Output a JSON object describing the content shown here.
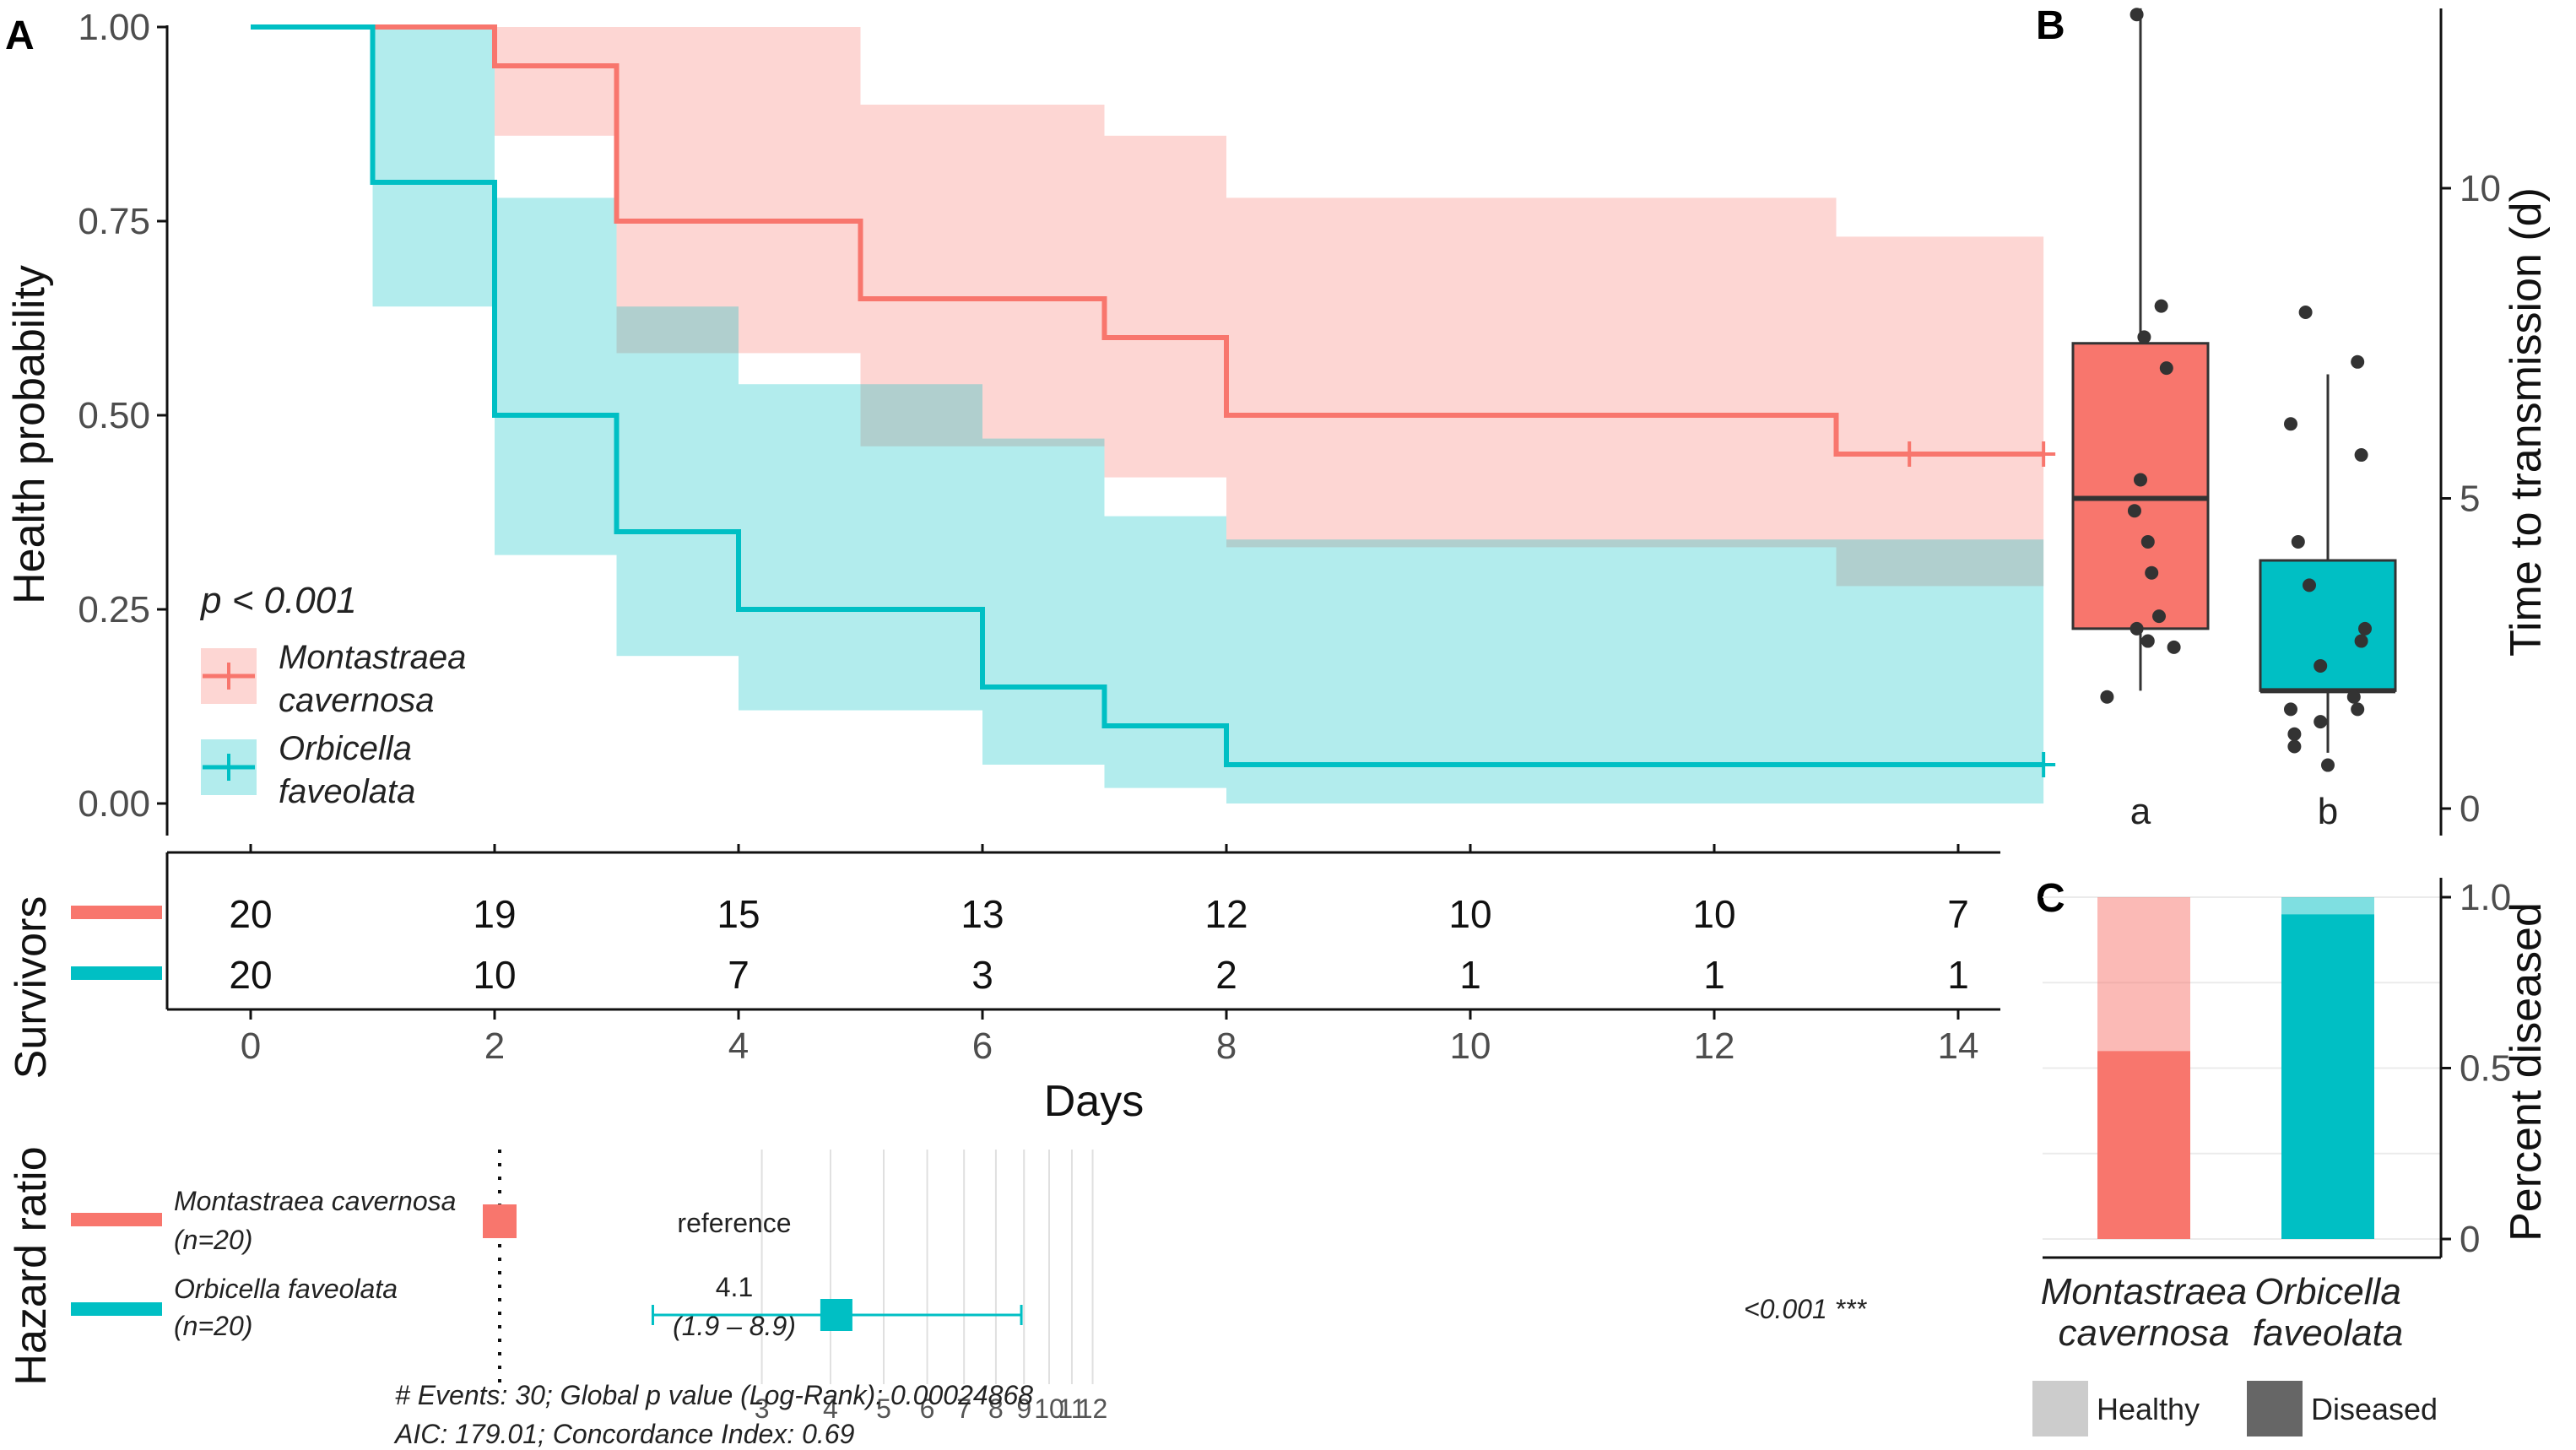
{
  "colors": {
    "mcav": "#F8766D",
    "ofav": "#00BFC4",
    "healthy": "#CCCCCC",
    "diseased": "#666666"
  },
  "chart_data": [
    {
      "panel": "A",
      "type": "line",
      "subtype": "kaplan-meier",
      "ylabel": "Health probability",
      "xlim": [
        0,
        14.7
      ],
      "ylim": [
        0,
        1
      ],
      "yticks": [
        "0.00",
        "0.25",
        "0.50",
        "0.75",
        "1.00"
      ],
      "pvalue_label": "p < 0.001",
      "legend": {
        "placement": "bottom-left",
        "entries": [
          {
            "line1": "Montastraea",
            "line2": "cavernosa"
          },
          {
            "line1": "Orbicella",
            "line2": "faveolata"
          }
        ]
      },
      "series": [
        {
          "name": "Montastraea cavernosa",
          "steps": [
            [
              0,
              1
            ],
            [
              1,
              1
            ],
            [
              2,
              0.95
            ],
            [
              3,
              0.75
            ],
            [
              5,
              0.65
            ],
            [
              7,
              0.6
            ],
            [
              8,
              0.5
            ],
            [
              13,
              0.45
            ],
            [
              14.7,
              0.45
            ]
          ],
          "ci": [
            [
              0,
              1,
              1
            ],
            [
              1,
              1,
              1
            ],
            [
              2,
              0.86,
              1
            ],
            [
              3,
              0.58,
              1
            ],
            [
              5,
              0.46,
              0.9
            ],
            [
              6,
              0.46,
              0.9
            ],
            [
              7,
              0.42,
              0.86
            ],
            [
              8,
              0.33,
              0.78
            ],
            [
              13,
              0.28,
              0.73
            ],
            [
              14.7,
              0.28,
              0.73
            ]
          ],
          "censor": [
            13.6,
            14.7
          ]
        },
        {
          "name": "Orbicella faveolata",
          "steps": [
            [
              0,
              1
            ],
            [
              1,
              0.8
            ],
            [
              2,
              0.5
            ],
            [
              3,
              0.35
            ],
            [
              4,
              0.25
            ],
            [
              6,
              0.15
            ],
            [
              7,
              0.1
            ],
            [
              8,
              0.05
            ],
            [
              14.7,
              0.05
            ]
          ],
          "ci": [
            [
              0,
              1,
              1
            ],
            [
              1,
              0.64,
              1
            ],
            [
              2,
              0.32,
              0.78
            ],
            [
              3,
              0.19,
              0.64
            ],
            [
              4,
              0.12,
              0.54
            ],
            [
              6,
              0.05,
              0.47
            ],
            [
              7,
              0.02,
              0.37
            ],
            [
              8,
              0,
              0.34
            ],
            [
              14.7,
              0,
              0.34
            ]
          ],
          "censor": [
            14.7
          ]
        }
      ]
    },
    {
      "panel": "A-table",
      "type": "table",
      "ylabel": "Survivors",
      "xlabel": "Days",
      "x": [
        0,
        2,
        4,
        6,
        8,
        10,
        12,
        14
      ],
      "rows": [
        {
          "name": "Montastraea cavernosa",
          "values": [
            20,
            19,
            15,
            13,
            12,
            10,
            10,
            7
          ]
        },
        {
          "name": "Orbicella faveolata",
          "values": [
            20,
            10,
            7,
            3,
            2,
            1,
            1,
            1
          ]
        }
      ]
    },
    {
      "panel": "A-hazard",
      "type": "scatter",
      "subtype": "forest",
      "ylabel": "Hazard ratio",
      "xscale": "log",
      "xticks": [
        3,
        4,
        5,
        6,
        7,
        8,
        9,
        10,
        11,
        12
      ],
      "rows": [
        {
          "name": "Montastraea cavernosa",
          "n": "(n=20)",
          "label": "reference",
          "hr": 1,
          "ci_text": "",
          "p_text": ""
        },
        {
          "name": "Orbicella faveolata",
          "n": "(n=20)",
          "label": "4.1",
          "hr": 4.1,
          "ci": [
            1.9,
            8.9
          ],
          "ci_text": "(1.9 – 8.9)",
          "p_text": "<0.001 ***"
        }
      ],
      "footer_line1": "# Events: 30; Global p value (Log-Rank): 0.00024868",
      "footer_line2": "AIC: 179.01; Concordance Index: 0.69"
    },
    {
      "panel": "B",
      "type": "box",
      "ylabel": "Time to transmission (d)",
      "ylim": [
        0,
        13
      ],
      "yticks": [
        0,
        5,
        10
      ],
      "groups": [
        {
          "name": "Montastraea cavernosa",
          "letter": "a",
          "q1": 2.9,
          "median": 5,
          "q3": 7.5,
          "whisker_low": 1.9,
          "whisker_high": 12.9,
          "points": [
            [
              -0.05,
              12.8
            ],
            [
              0.28,
              8.1
            ],
            [
              0.05,
              7.6
            ],
            [
              0.35,
              7.1
            ],
            [
              0.0,
              5.3
            ],
            [
              -0.08,
              4.8
            ],
            [
              0.1,
              4.3
            ],
            [
              0.15,
              3.8
            ],
            [
              0.25,
              3.1
            ],
            [
              -0.05,
              2.9
            ],
            [
              0.1,
              2.7
            ],
            [
              0.45,
              2.6
            ],
            [
              -0.45,
              1.8
            ]
          ]
        },
        {
          "name": "Orbicella faveolata",
          "letter": "b",
          "q1": 1.9,
          "median": 1.9,
          "q3": 4,
          "whisker_low": 0.9,
          "whisker_high": 7,
          "points": [
            [
              -0.3,
              8
            ],
            [
              0.4,
              7.2
            ],
            [
              -0.5,
              6.2
            ],
            [
              0.45,
              5.7
            ],
            [
              -0.4,
              4.3
            ],
            [
              -0.25,
              3.6
            ],
            [
              0.5,
              2.9
            ],
            [
              0.45,
              2.7
            ],
            [
              -0.1,
              2.3
            ],
            [
              0.35,
              1.8
            ],
            [
              0.4,
              1.6
            ],
            [
              -0.5,
              1.6
            ],
            [
              -0.1,
              1.4
            ],
            [
              -0.45,
              1.2
            ],
            [
              -0.45,
              1.0
            ],
            [
              0.0,
              0.7
            ]
          ]
        }
      ]
    },
    {
      "panel": "C",
      "type": "bar",
      "stacked": true,
      "ylabel": "Percent diseased",
      "ylim": [
        0,
        1
      ],
      "yticks": [
        "0",
        "0.5",
        "1.0"
      ],
      "categories": [
        "Montastraea cavernosa",
        "Orbicella faveolata"
      ],
      "category_lines": [
        [
          "Montastraea",
          "cavernosa"
        ],
        [
          "Orbicella",
          "faveolata"
        ]
      ],
      "series": [
        {
          "name": "Diseased",
          "values": [
            0.55,
            0.95
          ]
        },
        {
          "name": "Healthy",
          "values": [
            0.45,
            0.05
          ]
        }
      ],
      "legend": {
        "placement": "bottom",
        "entries": [
          "Healthy",
          "Diseased"
        ]
      }
    }
  ]
}
